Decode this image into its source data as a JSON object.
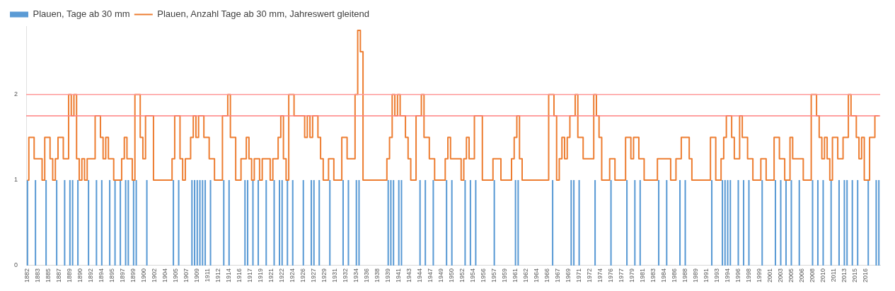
{
  "chart_data": {
    "type": "bar",
    "categories": [
      "1882",
      null,
      null,
      null,
      "1883",
      null,
      null,
      null,
      "1885",
      null,
      null,
      null,
      "1887",
      null,
      null,
      null,
      "1889",
      null,
      null,
      null,
      "1890",
      null,
      null,
      null,
      "1892",
      null,
      null,
      null,
      "1894",
      null,
      null,
      null,
      "1895",
      null,
      null,
      null,
      "1897",
      null,
      null,
      null,
      "1899",
      null,
      null,
      null,
      "1900",
      null,
      null,
      null,
      "1902",
      null,
      null,
      null,
      "1904",
      null,
      null,
      null,
      "1905",
      null,
      null,
      null,
      "1907",
      null,
      null,
      null,
      "1909",
      null,
      null,
      null,
      "1911",
      null,
      null,
      null,
      "1912",
      null,
      null,
      null,
      "1914",
      null,
      null,
      null,
      "1916",
      null,
      null,
      null,
      "1917",
      null,
      null,
      null,
      "1919",
      null,
      null,
      null,
      "1921",
      null,
      null,
      null,
      "1922",
      null,
      null,
      null,
      "1924",
      null,
      null,
      null,
      "1926",
      null,
      null,
      null,
      "1927",
      null,
      null,
      null,
      "1929",
      null,
      null,
      null,
      "1931",
      null,
      null,
      null,
      "1932",
      null,
      null,
      null,
      "1934",
      null,
      null,
      null,
      "1936",
      null,
      null,
      null,
      "1938",
      null,
      null,
      null,
      "1939",
      null,
      null,
      null,
      "1941",
      null,
      null,
      null,
      "1943",
      null,
      null,
      null,
      "1944",
      null,
      null,
      null,
      "1947",
      null,
      null,
      null,
      "1949",
      null,
      null,
      null,
      "1950",
      null,
      null,
      null,
      "1952",
      null,
      null,
      null,
      "1954",
      null,
      null,
      null,
      "1956",
      null,
      null,
      null,
      "1957",
      null,
      null,
      null,
      "1959",
      null,
      null,
      null,
      "1961",
      null,
      null,
      null,
      "1962",
      null,
      null,
      null,
      "1964",
      null,
      null,
      null,
      "1966",
      null,
      null,
      null,
      "1967",
      null,
      null,
      null,
      "1969",
      null,
      null,
      null,
      "1971",
      null,
      null,
      null,
      "1972",
      null,
      null,
      null,
      "1974",
      null,
      null,
      null,
      "1976",
      null,
      null,
      null,
      "1977",
      null,
      null,
      null,
      "1979",
      null,
      null,
      null,
      "1981",
      null,
      null,
      null,
      "1983",
      null,
      null,
      null,
      "1984",
      null,
      null,
      null,
      "1986",
      null,
      null,
      null,
      "1988",
      null,
      null,
      null,
      "1989",
      null,
      null,
      null,
      "1991",
      null,
      null,
      null,
      "1993",
      null,
      null,
      null,
      "1994",
      null,
      null,
      null,
      "1996",
      null,
      null,
      null,
      "1998",
      null,
      null,
      null,
      "1999",
      null,
      null,
      null,
      "2001",
      null,
      null,
      null,
      "2003",
      null,
      null,
      null,
      "2005",
      null,
      null,
      null,
      "2006",
      null,
      null,
      null,
      "2008",
      null,
      null,
      null,
      "2010",
      null,
      null,
      null,
      "2011",
      null,
      null,
      null,
      "2013",
      null,
      null,
      null,
      "2015",
      null,
      null,
      null,
      "2016",
      null,
      null,
      null,
      null,
      null
    ],
    "series": [
      {
        "name": "Plauen, Tage ab 30 mm",
        "color": "#5b9bd5",
        "values": [
          1,
          null,
          null,
          1,
          null,
          null,
          null,
          1,
          null,
          null,
          null,
          1,
          null,
          null,
          1,
          null,
          1,
          1,
          null,
          1,
          null,
          null,
          null,
          1,
          null,
          null,
          1,
          null,
          1,
          null,
          null,
          1,
          null,
          1,
          null,
          1,
          null,
          1,
          1,
          null,
          1,
          1,
          null,
          null,
          null,
          1,
          null,
          null,
          null,
          null,
          null,
          null,
          null,
          null,
          null,
          1,
          null,
          1,
          null,
          null,
          null,
          null,
          1,
          1,
          1,
          1,
          1,
          1,
          null,
          1,
          null,
          null,
          null,
          null,
          1,
          null,
          1,
          null,
          null,
          null,
          null,
          null,
          1,
          1,
          null,
          1,
          null,
          1,
          null,
          null,
          1,
          null,
          null,
          1,
          null,
          1,
          1,
          null,
          1,
          null,
          1,
          null,
          null,
          null,
          1,
          null,
          null,
          1,
          1,
          null,
          1,
          null,
          null,
          null,
          1,
          null,
          null,
          null,
          null,
          1,
          null,
          1,
          null,
          null,
          1,
          1,
          null,
          null,
          null,
          null,
          null,
          null,
          null,
          null,
          null,
          null,
          1,
          1,
          1,
          null,
          1,
          1,
          null,
          null,
          null,
          null,
          null,
          null,
          1,
          null,
          1,
          null,
          null,
          1,
          null,
          null,
          null,
          null,
          1,
          null,
          1,
          null,
          null,
          null,
          null,
          1,
          null,
          1,
          null,
          1,
          null,
          null,
          null,
          null,
          null,
          null,
          1,
          null,
          null,
          null,
          null,
          null,
          null,
          null,
          1,
          1,
          null,
          null,
          null,
          null,
          null,
          null,
          null,
          null,
          null,
          null,
          null,
          null,
          1,
          null,
          null,
          null,
          null,
          null,
          null,
          1,
          1,
          null,
          1,
          null,
          null,
          null,
          null,
          null,
          1,
          null,
          null,
          null,
          null,
          null,
          1,
          null,
          null,
          null,
          null,
          null,
          1,
          null,
          null,
          1,
          null,
          1,
          null,
          null,
          null,
          null,
          null,
          null,
          1,
          null,
          null,
          1,
          null,
          null,
          null,
          null,
          1,
          null,
          1,
          null,
          null,
          null,
          null,
          null,
          null,
          null,
          null,
          null,
          1,
          null,
          null,
          null,
          1,
          1,
          1,
          1,
          null,
          null,
          1,
          null,
          1,
          null,
          1,
          null,
          null,
          null,
          null,
          1,
          null,
          null,
          null,
          null,
          1,
          null,
          1,
          null,
          1,
          null,
          1,
          null,
          null,
          1,
          null,
          null,
          null,
          null,
          1,
          null,
          1,
          null,
          1,
          null,
          null,
          1,
          null,
          null,
          1,
          null,
          1,
          1,
          null,
          1,
          null,
          1,
          null,
          null,
          null,
          1,
          null,
          null,
          1,
          1
        ]
      },
      {
        "name": "Plauen, Anzahl Tage ab 30 mm, Jahreswert gleitend",
        "type": "step",
        "color": "#ed7d31",
        "values": [
          1,
          1.5,
          1.5,
          1.25,
          1.25,
          1.25,
          1,
          1.5,
          1.5,
          1.25,
          1,
          1.25,
          1.5,
          1.5,
          1.25,
          1.25,
          2,
          1.75,
          2,
          1.25,
          1,
          1.25,
          1,
          1.25,
          1.25,
          1.25,
          1.75,
          1.75,
          1.5,
          1.25,
          1.5,
          1.25,
          1.25,
          1,
          1,
          1,
          1.25,
          1.5,
          1.25,
          1.25,
          1,
          2,
          2,
          1.5,
          1.25,
          1.75,
          1.75,
          1.75,
          1,
          1,
          1,
          1,
          1,
          1,
          1,
          1.25,
          1.75,
          1.75,
          1.25,
          1,
          1.25,
          1.25,
          1.5,
          1.75,
          1.5,
          1.75,
          1.75,
          1.5,
          1.5,
          1.25,
          1.25,
          1,
          1,
          1,
          1.75,
          1.75,
          2,
          1.5,
          1.5,
          1,
          1,
          1.25,
          1.25,
          1.5,
          1.25,
          1,
          1.25,
          1.25,
          1,
          1.25,
          1.25,
          1.25,
          1,
          1.25,
          1.25,
          1.5,
          1.75,
          1.25,
          1,
          2,
          2,
          1.75,
          1.75,
          1.75,
          1.75,
          1.5,
          1.75,
          1.5,
          1.75,
          1.75,
          1.5,
          1.25,
          1,
          1,
          1.25,
          1.25,
          1,
          1,
          1,
          1.5,
          1.5,
          1.25,
          1.25,
          1.25,
          2,
          2.75,
          2.5,
          1,
          1,
          1,
          1,
          1,
          1,
          1,
          1,
          1,
          1.25,
          1.5,
          2,
          1.75,
          2,
          1.75,
          1.75,
          1.5,
          1.25,
          1,
          1,
          1.75,
          1.75,
          2,
          1.5,
          1.5,
          1.25,
          1.25,
          1,
          1,
          1,
          1,
          1.25,
          1.5,
          1.25,
          1.25,
          1.25,
          1.25,
          1,
          1.25,
          1.5,
          1.25,
          1.25,
          1.75,
          1.75,
          1.75,
          1,
          1,
          1,
          1,
          1.25,
          1.25,
          1.25,
          1,
          1,
          1,
          1,
          1.25,
          1.5,
          1.75,
          1.25,
          1,
          1,
          1,
          1,
          1,
          1,
          1,
          1,
          1,
          1,
          2,
          2,
          1.75,
          1,
          1.25,
          1.5,
          1.25,
          1.5,
          1.75,
          1.75,
          2,
          1.5,
          1.5,
          1.25,
          1.25,
          1.25,
          1.25,
          2,
          1.75,
          1.5,
          1,
          1,
          1,
          1.25,
          1.25,
          1,
          1,
          1,
          1,
          1.5,
          1.5,
          1.25,
          1.5,
          1.5,
          1.25,
          1.25,
          1,
          1,
          1,
          1,
          1,
          1.25,
          1.25,
          1.25,
          1.25,
          1.25,
          1,
          1,
          1.25,
          1.25,
          1.5,
          1.5,
          1.5,
          1.25,
          1,
          1,
          1,
          1,
          1,
          1,
          1,
          1.5,
          1.5,
          1,
          1,
          1.25,
          1.5,
          1.75,
          1.75,
          1.5,
          1.25,
          1.25,
          1.75,
          1.5,
          1.5,
          1.25,
          1.25,
          1,
          1,
          1,
          1.25,
          1.25,
          1,
          1,
          1,
          1.5,
          1.5,
          1.25,
          1.25,
          1,
          1,
          1.5,
          1.25,
          1.25,
          1.25,
          1.25,
          1,
          1,
          1,
          2,
          2,
          1.75,
          1.5,
          1.25,
          1.5,
          1.25,
          1,
          1.5,
          1.5,
          1.25,
          1.25,
          1.5,
          1.5,
          2,
          1.75,
          1.75,
          1.5,
          1.25,
          1.5,
          1,
          1,
          1.5,
          1.5,
          1.75,
          1.75
        ]
      }
    ],
    "ylim": [
      0,
      2.8
    ],
    "yticks": [
      0,
      1,
      2
    ],
    "ref_lines": [
      {
        "axis": "y",
        "value": 2,
        "color": "#ff9999"
      },
      {
        "axis": "y",
        "value": 1.75,
        "color": "#ff8080"
      }
    ],
    "legend": "top"
  }
}
